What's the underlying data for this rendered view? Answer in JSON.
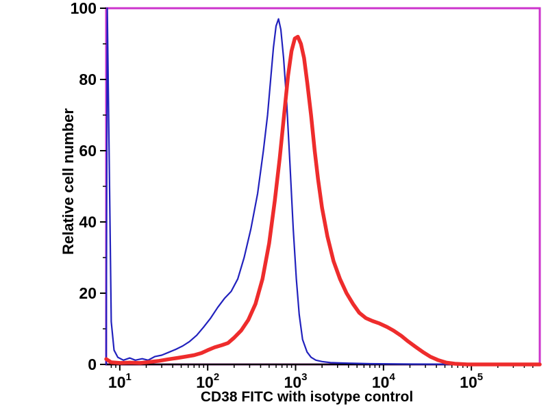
{
  "figure": {
    "background": "#ffffff",
    "frame_color": "#cc33cc",
    "axis_color": "#000000",
    "text_color": "#000000"
  },
  "chart_data": {
    "type": "line",
    "subtype": "flow-cytometry-histogram",
    "title": "",
    "xlabel": "CD38 FITC with isotype control",
    "ylabel": "Relative cell number",
    "x_scale": "log",
    "xlim": [
      7,
      600000
    ],
    "ylim": [
      0,
      100
    ],
    "x_ticks": [
      10,
      100,
      1000,
      10000,
      100000
    ],
    "x_tick_exponents": [
      1,
      2,
      3,
      4,
      5
    ],
    "x_tick_labels": [
      "10^1",
      "10^2",
      "10^3",
      "10^4",
      "10^5"
    ],
    "y_ticks": [
      0,
      20,
      40,
      60,
      80,
      100
    ],
    "y_minor_ticks": [
      10,
      30,
      50,
      70,
      90
    ],
    "grid": false,
    "legend": null,
    "series": [
      {
        "name": "isotype control",
        "color": "#2121bd",
        "stroke_width": 2.2,
        "points": [
          [
            7,
            0
          ],
          [
            7.2,
            100
          ],
          [
            7.6,
            55
          ],
          [
            8,
            12
          ],
          [
            8.6,
            4
          ],
          [
            9.5,
            2
          ],
          [
            11,
            1.2
          ],
          [
            13,
            1.8
          ],
          [
            15,
            1.2
          ],
          [
            18,
            1.6
          ],
          [
            21,
            1.2
          ],
          [
            25,
            2.2
          ],
          [
            30,
            2.6
          ],
          [
            36,
            3.4
          ],
          [
            43,
            4.2
          ],
          [
            52,
            5.2
          ],
          [
            62,
            6.4
          ],
          [
            75,
            8.2
          ],
          [
            90,
            10.5
          ],
          [
            108,
            13
          ],
          [
            130,
            16
          ],
          [
            155,
            18.5
          ],
          [
            185,
            20.5
          ],
          [
            220,
            24
          ],
          [
            260,
            30
          ],
          [
            310,
            38
          ],
          [
            370,
            48
          ],
          [
            430,
            60
          ],
          [
            480,
            70
          ],
          [
            520,
            80
          ],
          [
            560,
            89
          ],
          [
            600,
            95
          ],
          [
            640,
            97
          ],
          [
            680,
            94
          ],
          [
            730,
            86
          ],
          [
            790,
            74
          ],
          [
            860,
            57
          ],
          [
            940,
            38
          ],
          [
            1020,
            24
          ],
          [
            1100,
            14
          ],
          [
            1200,
            7
          ],
          [
            1350,
            3.5
          ],
          [
            1500,
            2
          ],
          [
            1700,
            1.2
          ],
          [
            2000,
            0.8
          ],
          [
            2500,
            0.5
          ],
          [
            3200,
            0.4
          ],
          [
            4500,
            0.3
          ],
          [
            7000,
            0.2
          ],
          [
            20000,
            0.1
          ],
          [
            600000,
            0
          ]
        ]
      },
      {
        "name": "CD38 FITC",
        "color": "#ee2c2c",
        "stroke_width": 5.5,
        "points": [
          [
            7,
            1.5
          ],
          [
            8,
            0.6
          ],
          [
            10,
            0.4
          ],
          [
            13,
            0.5
          ],
          [
            17,
            0.4
          ],
          [
            22,
            0.7
          ],
          [
            28,
            1
          ],
          [
            35,
            1.4
          ],
          [
            45,
            1.8
          ],
          [
            56,
            2.2
          ],
          [
            70,
            2.6
          ],
          [
            85,
            3.2
          ],
          [
            100,
            4
          ],
          [
            120,
            4.8
          ],
          [
            145,
            5.4
          ],
          [
            170,
            6
          ],
          [
            200,
            7.5
          ],
          [
            240,
            9.5
          ],
          [
            290,
            12.5
          ],
          [
            350,
            17
          ],
          [
            420,
            24
          ],
          [
            500,
            34
          ],
          [
            580,
            46
          ],
          [
            660,
            58
          ],
          [
            740,
            70
          ],
          [
            820,
            81
          ],
          [
            900,
            88
          ],
          [
            980,
            91.5
          ],
          [
            1060,
            92
          ],
          [
            1150,
            90
          ],
          [
            1250,
            86
          ],
          [
            1360,
            79
          ],
          [
            1500,
            70
          ],
          [
            1650,
            60
          ],
          [
            1800,
            52
          ],
          [
            2000,
            44
          ],
          [
            2300,
            36
          ],
          [
            2700,
            29
          ],
          [
            3200,
            24
          ],
          [
            3800,
            20
          ],
          [
            4500,
            17
          ],
          [
            5300,
            14.5
          ],
          [
            6300,
            13
          ],
          [
            7500,
            12.2
          ],
          [
            9000,
            11.5
          ],
          [
            11000,
            10.5
          ],
          [
            13000,
            9.5
          ],
          [
            16000,
            8
          ],
          [
            19000,
            6.5
          ],
          [
            23000,
            5
          ],
          [
            28000,
            3.5
          ],
          [
            34000,
            2.2
          ],
          [
            42000,
            1.2
          ],
          [
            52000,
            0.5
          ],
          [
            65000,
            0.2
          ],
          [
            90000,
            0
          ],
          [
            600000,
            0
          ]
        ]
      }
    ]
  }
}
